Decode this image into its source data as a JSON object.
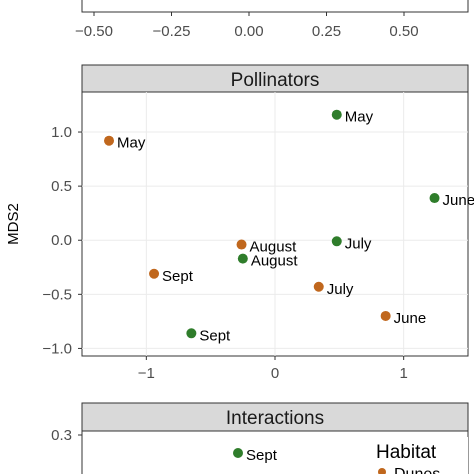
{
  "colors": {
    "Dunes": "#c0671d",
    "Forest": "#2f7d2b",
    "strip": "#d9d9d9",
    "grid": "#ebebeb",
    "border": "#333333"
  },
  "legend": {
    "title": "Habitat",
    "label": "Dunes"
  },
  "chart_data": [
    {
      "type": "scatter",
      "title": "",
      "xlabel": "",
      "ylabel": "",
      "x_ticks": [
        "−0.50",
        "−0.25",
        "0.00",
        "0.25",
        "0.50"
      ],
      "xlim": [
        -0.6,
        0.6
      ],
      "series": []
    },
    {
      "type": "scatter",
      "title": "Pollinators",
      "xlabel": "",
      "ylabel": "MDS2",
      "x_ticks": [
        "−1",
        "0",
        "1"
      ],
      "y_ticks": [
        "−1.0",
        "−0.5",
        "0.0",
        "0.5",
        "1.0"
      ],
      "xlim": [
        -1.5,
        1.5
      ],
      "ylim": [
        -1.07,
        1.37
      ],
      "series": [
        {
          "habitat": "Dunes",
          "points": [
            {
              "x": -1.29,
              "y": 0.92,
              "label": "May"
            },
            {
              "x": -0.26,
              "y": -0.04,
              "label": "August"
            },
            {
              "x": -0.94,
              "y": -0.31,
              "label": "Sept"
            },
            {
              "x": 0.34,
              "y": -0.43,
              "label": "July"
            },
            {
              "x": 0.86,
              "y": -0.7,
              "label": "June"
            }
          ]
        },
        {
          "habitat": "Forest",
          "points": [
            {
              "x": 0.48,
              "y": 1.16,
              "label": "May"
            },
            {
              "x": 1.24,
              "y": 0.39,
              "label": "June"
            },
            {
              "x": 0.48,
              "y": -0.01,
              "label": "July"
            },
            {
              "x": -0.25,
              "y": -0.17,
              "label": "August"
            },
            {
              "x": -0.65,
              "y": -0.86,
              "label": "Sept"
            }
          ]
        }
      ]
    },
    {
      "type": "scatter",
      "title": "Interactions",
      "xlabel": "",
      "ylabel": "",
      "y_ticks": [
        "0.3"
      ],
      "series": [
        {
          "habitat": "Forest",
          "points": [
            {
              "label": "Sept"
            }
          ]
        }
      ]
    }
  ]
}
